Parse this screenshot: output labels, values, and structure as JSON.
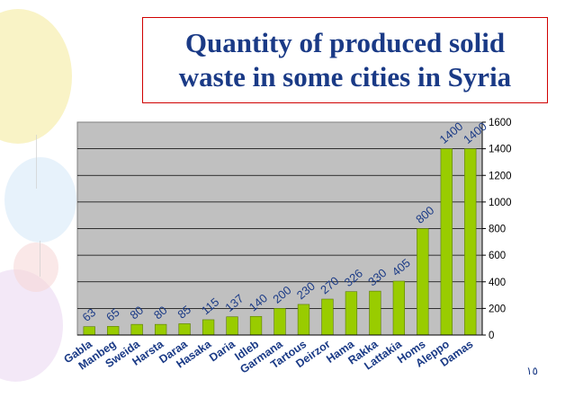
{
  "slide": {
    "title": "Quantity of produced solid\nwaste in some cities in Syria",
    "page_number": "١٥"
  },
  "colors": {
    "bar": "#99cc00",
    "plot_bg": "#c0c0c0",
    "label": "#1a3a86",
    "title_border": "#d00000"
  },
  "chart_data": {
    "type": "bar",
    "title": "Quantity of produced solid waste in some cities in Syria",
    "categories": [
      "Gabla",
      "Manbeg",
      "Sweida",
      "Harsta",
      "Daraa",
      "Hasaka",
      "Daria",
      "Idleb",
      "Garmana",
      "Tartous",
      "Deirzor",
      "Hama",
      "Rakka",
      "Lattakia",
      "Homs",
      "Aleppo",
      "Damas"
    ],
    "values": [
      63,
      65,
      80,
      80,
      85,
      115,
      137,
      140,
      200,
      230,
      270,
      326,
      330,
      405,
      800,
      1400,
      1400
    ],
    "ylim": [
      0,
      1600
    ],
    "yticks": [
      0,
      200,
      400,
      600,
      800,
      1000,
      1200,
      1400,
      1600
    ],
    "y_axis_position": "right",
    "grid": true,
    "legend": "none"
  }
}
